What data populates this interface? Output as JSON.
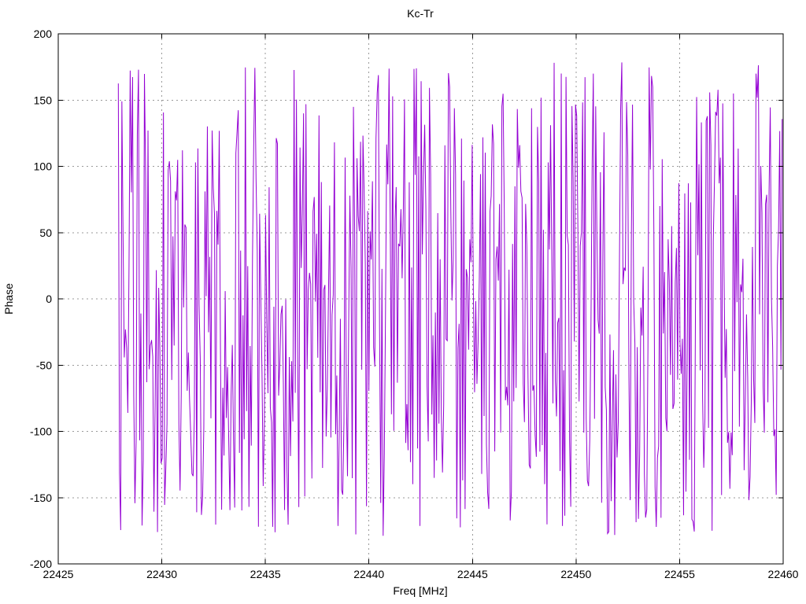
{
  "page": {
    "background": "#ffffff"
  },
  "chart_data": {
    "type": "line",
    "title": "Kc-Tr",
    "xlabel": "Freq [MHz]",
    "ylabel": "Phase",
    "xlim": [
      22425,
      22460
    ],
    "ylim": [
      -200,
      200
    ],
    "x_ticks": [
      22425,
      22430,
      22435,
      22440,
      22445,
      22450,
      22455,
      22460
    ],
    "x_tick_labels": [
      "22425",
      "22430",
      "22435",
      "22440",
      "22445",
      "22450",
      "22455",
      "22460"
    ],
    "y_ticks": [
      -200,
      -150,
      -100,
      -50,
      0,
      50,
      100,
      150,
      200
    ],
    "y_tick_labels": [
      "-200",
      "-150",
      "-100",
      "-50",
      "0",
      "50",
      "100",
      "150",
      "200"
    ],
    "grid": true,
    "grid_style": "dotted",
    "grid_color": "#9a9a9a",
    "axis_color": "#000000",
    "tick_length": 6,
    "legend": "none",
    "series": [
      {
        "name": "Kc-Tr",
        "color": "#9400d3",
        "line_width": 1,
        "style": "wrapped-phase-noise",
        "x_start": 22427.9,
        "x_end": 22459.95,
        "n_points": 560,
        "y_min": -180,
        "y_max": 180,
        "seed": 987654321,
        "note": "Phase values wrap within +/-180 degrees and appear uniformly distributed across the sweep; trace synthesized deterministically from seed to match the observed noise texture."
      }
    ]
  }
}
